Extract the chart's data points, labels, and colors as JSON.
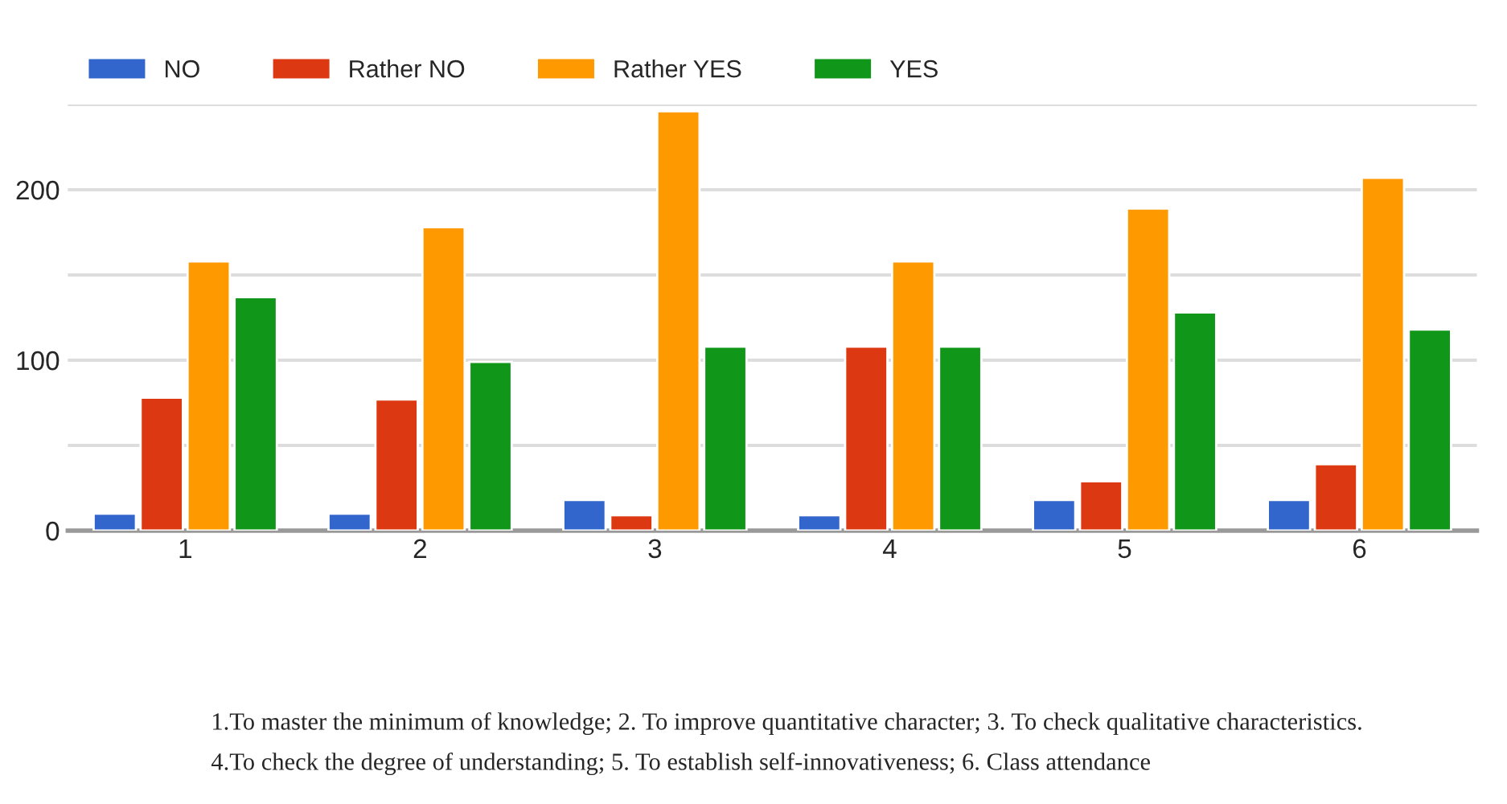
{
  "chart_data": {
    "type": "bar",
    "categories": [
      "1",
      "2",
      "3",
      "4",
      "5",
      "6"
    ],
    "series": [
      {
        "name": "NO",
        "color": "#3366cc",
        "values": [
          10,
          10,
          18,
          9,
          18,
          18
        ]
      },
      {
        "name": "Rather NO",
        "color": "#dc3912",
        "values": [
          78,
          77,
          9,
          108,
          29,
          39
        ]
      },
      {
        "name": "Rather YES",
        "color": "#ff9900",
        "values": [
          158,
          178,
          246,
          158,
          189,
          207
        ]
      },
      {
        "name": "YES",
        "color": "#109618",
        "values": [
          137,
          99,
          108,
          108,
          128,
          118
        ]
      }
    ],
    "ylim": [
      0,
      250
    ],
    "yticks": [
      0,
      {
        "value": 50,
        "label": null
      },
      100,
      {
        "value": 150,
        "label": null
      },
      200,
      {
        "value": 250,
        "label": null
      }
    ],
    "grid": "y",
    "legend": "top left",
    "annotations": [
      "1.To master the minimum of knowledge; 2. To improve quantitative character; 3. To check qualitative characteristics.",
      "4.To check the degree of understanding; 5. To establish self-innovativeness; 6. Class attendance"
    ]
  }
}
